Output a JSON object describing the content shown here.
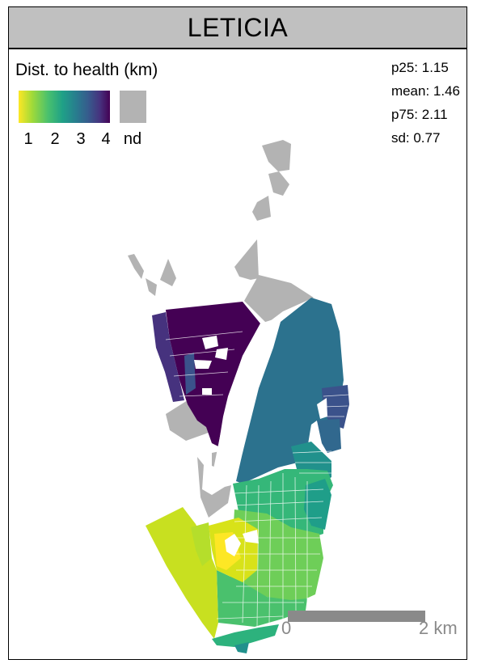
{
  "title": "LETICIA",
  "legend": {
    "title": "Dist. to health (km)",
    "ticks": [
      "1",
      "2",
      "3",
      "4"
    ],
    "nd_label": "nd",
    "colormap": [
      "#fde725",
      "#a0da39",
      "#4ac16d",
      "#1fa187",
      "#277f8e",
      "#365c8d",
      "#46327e",
      "#440154"
    ],
    "nd_color": "#b3b3b3",
    "range": [
      1,
      4
    ]
  },
  "stats": {
    "p25": "p25: 1.15",
    "mean": "mean: 1.46",
    "p75": "p75: 2.11",
    "sd": "sd: 0.77"
  },
  "scale_bar": {
    "start_label": "0",
    "end_label": "2 km"
  }
}
